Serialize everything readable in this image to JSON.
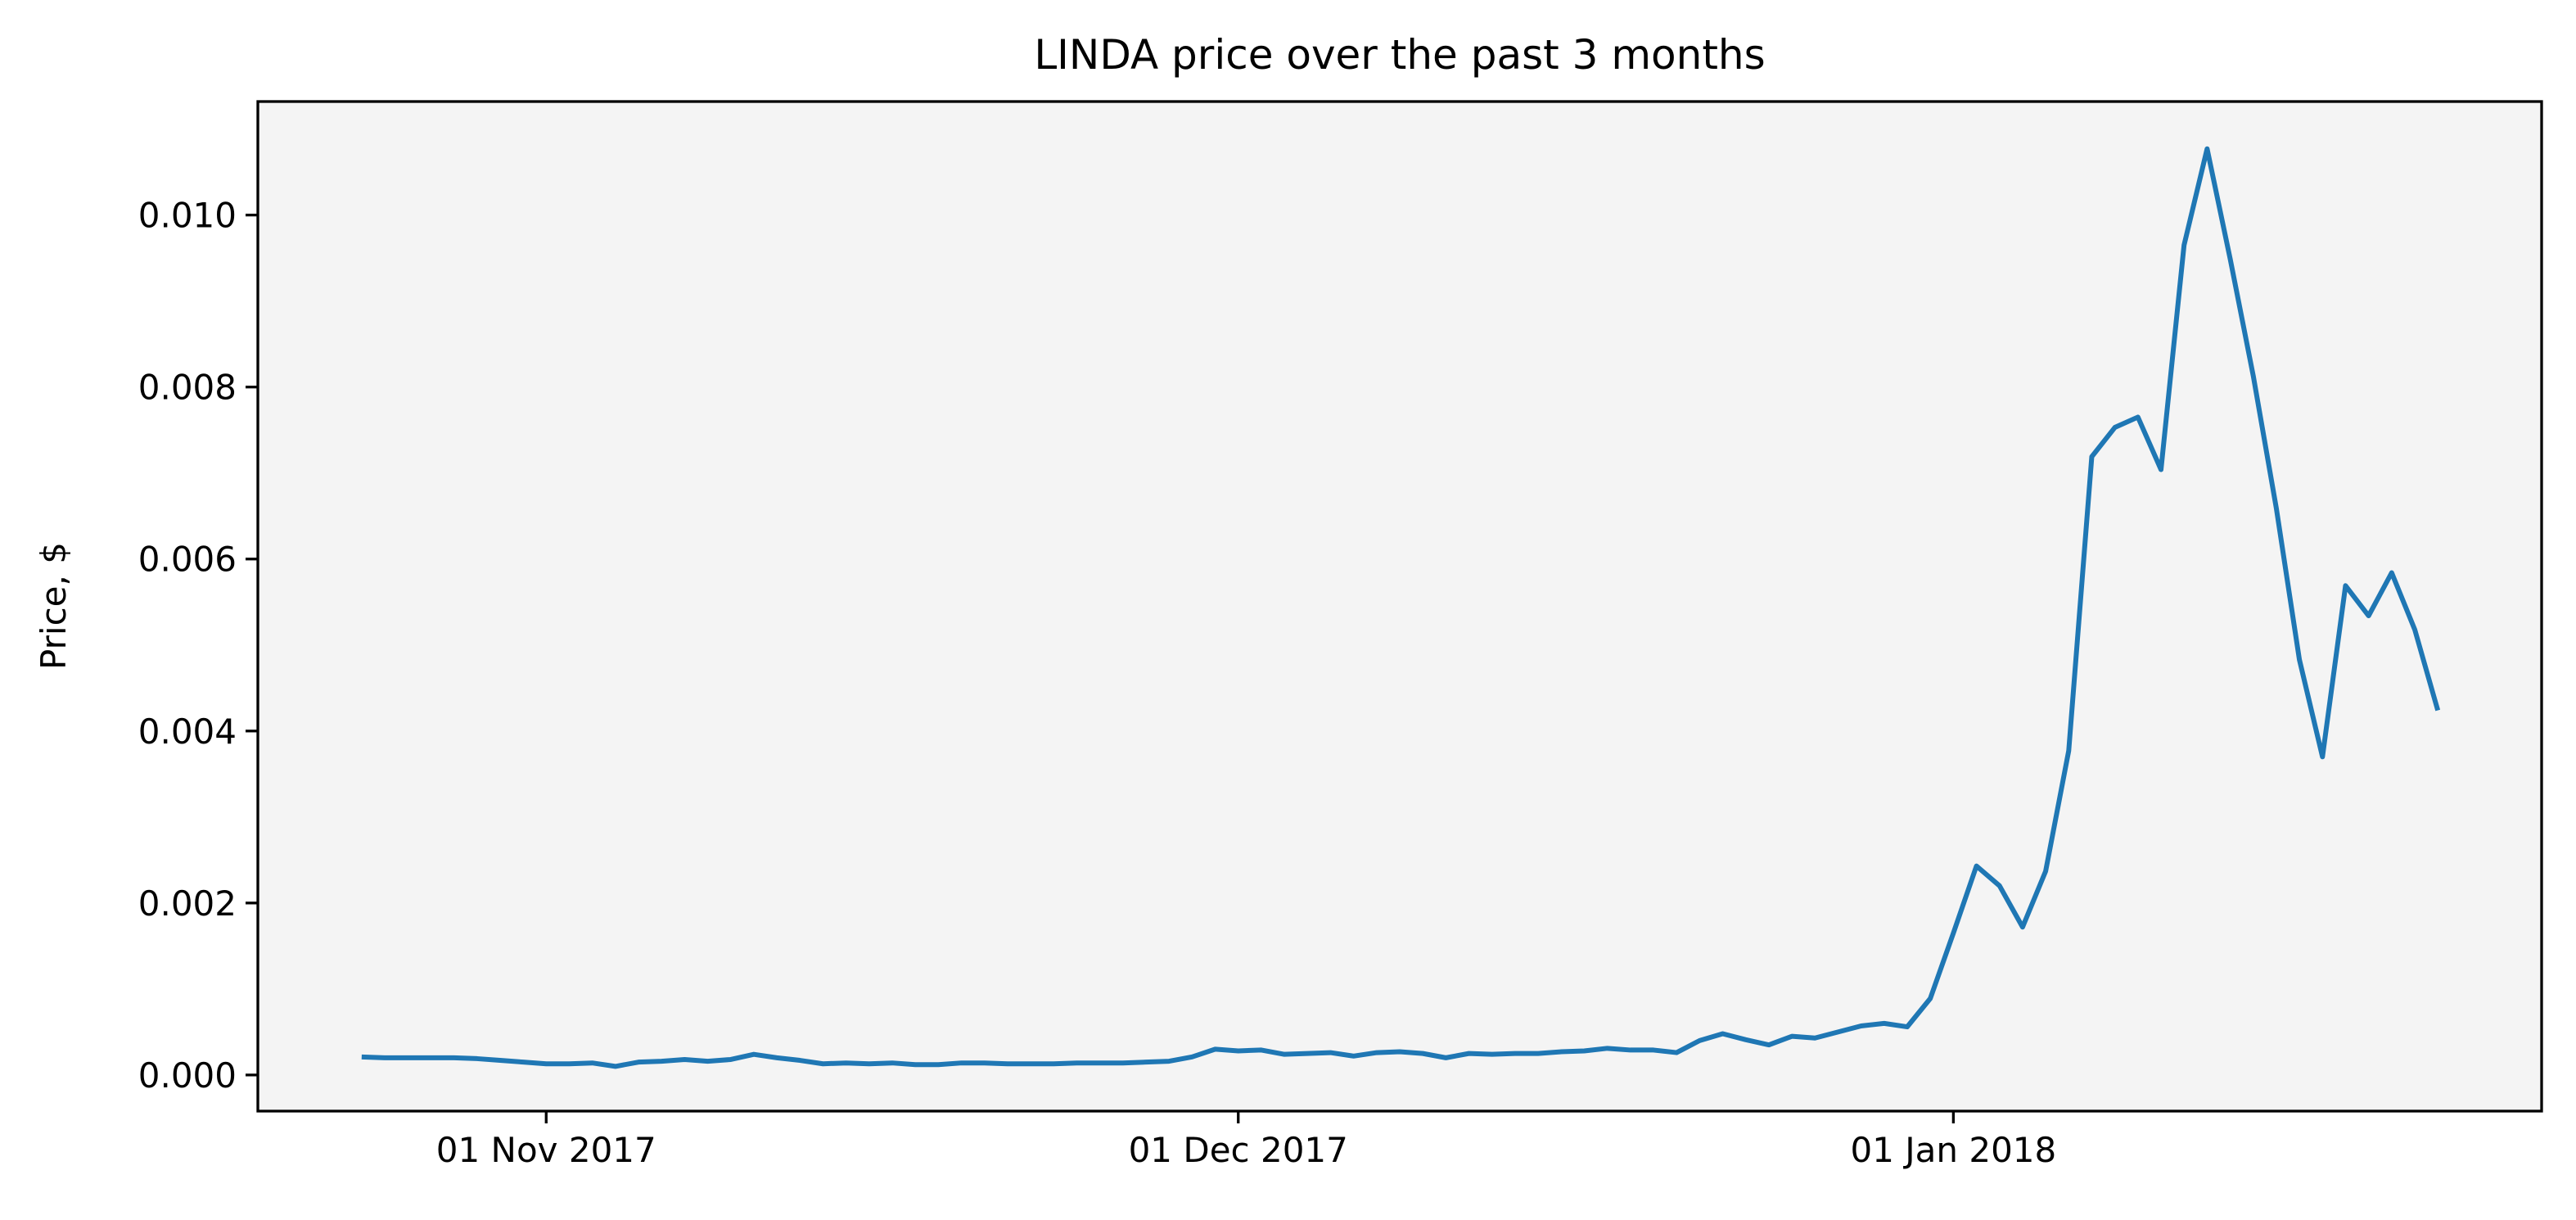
{
  "chart_data": {
    "type": "line",
    "title": "LINDA price over the past 3 months",
    "ylabel": "Price, $",
    "x": [
      "2017-10-24",
      "2017-10-25",
      "2017-10-26",
      "2017-10-27",
      "2017-10-28",
      "2017-10-29",
      "2017-10-30",
      "2017-10-31",
      "2017-11-01",
      "2017-11-02",
      "2017-11-03",
      "2017-11-04",
      "2017-11-05",
      "2017-11-06",
      "2017-11-07",
      "2017-11-08",
      "2017-11-09",
      "2017-11-10",
      "2017-11-11",
      "2017-11-12",
      "2017-11-13",
      "2017-11-14",
      "2017-11-15",
      "2017-11-16",
      "2017-11-17",
      "2017-11-18",
      "2017-11-19",
      "2017-11-20",
      "2017-11-21",
      "2017-11-22",
      "2017-11-23",
      "2017-11-24",
      "2017-11-25",
      "2017-11-26",
      "2017-11-27",
      "2017-11-28",
      "2017-11-29",
      "2017-11-30",
      "2017-12-01",
      "2017-12-02",
      "2017-12-03",
      "2017-12-04",
      "2017-12-05",
      "2017-12-06",
      "2017-12-07",
      "2017-12-08",
      "2017-12-09",
      "2017-12-10",
      "2017-12-11",
      "2017-12-12",
      "2017-12-13",
      "2017-12-14",
      "2017-12-15",
      "2017-12-16",
      "2017-12-17",
      "2017-12-18",
      "2017-12-19",
      "2017-12-20",
      "2017-12-21",
      "2017-12-22",
      "2017-12-23",
      "2017-12-24",
      "2017-12-25",
      "2017-12-26",
      "2017-12-27",
      "2017-12-28",
      "2017-12-29",
      "2017-12-30",
      "2017-12-31",
      "2018-01-01",
      "2018-01-02",
      "2018-01-03",
      "2018-01-04",
      "2018-01-05",
      "2018-01-06",
      "2018-01-07",
      "2018-01-08",
      "2018-01-09",
      "2018-01-10",
      "2018-01-11",
      "2018-01-12",
      "2018-01-13",
      "2018-01-14",
      "2018-01-15",
      "2018-01-16",
      "2018-01-17",
      "2018-01-18",
      "2018-01-19",
      "2018-01-20",
      "2018-01-21",
      "2018-01-22"
    ],
    "values": [
      0.00021,
      0.0002,
      0.0002,
      0.0002,
      0.0002,
      0.00019,
      0.00017,
      0.00015,
      0.00013,
      0.00013,
      0.00014,
      0.0001,
      0.00015,
      0.00016,
      0.00018,
      0.00016,
      0.00018,
      0.00024,
      0.0002,
      0.00017,
      0.00013,
      0.00014,
      0.00013,
      0.00014,
      0.00012,
      0.00012,
      0.00014,
      0.00014,
      0.00013,
      0.00013,
      0.00013,
      0.00014,
      0.00014,
      0.00014,
      0.00015,
      0.00016,
      0.00021,
      0.0003,
      0.00028,
      0.00029,
      0.00024,
      0.00025,
      0.00026,
      0.00022,
      0.00026,
      0.00027,
      0.00025,
      0.0002,
      0.00025,
      0.00024,
      0.00025,
      0.00025,
      0.00027,
      0.00028,
      0.00031,
      0.00029,
      0.00029,
      0.00026,
      0.0004,
      0.00048,
      0.00041,
      0.00035,
      0.00045,
      0.00043,
      0.0005,
      0.00057,
      0.0006,
      0.00056,
      0.00089,
      0.00165,
      0.00243,
      0.0022,
      0.00172,
      0.00237,
      0.00377,
      0.00719,
      0.00753,
      0.00765,
      0.00704,
      0.00965,
      0.01077,
      0.00949,
      0.00813,
      0.00659,
      0.00483,
      0.0037,
      0.00569,
      0.00534,
      0.00584,
      0.00518,
      0.00424
    ],
    "color": "#1f77b4",
    "xlim": [
      "2017-10-19T12:00",
      "2018-01-26T12:00"
    ],
    "xticks": [
      {
        "value": "2017-11-01",
        "label": "01 Nov 2017"
      },
      {
        "value": "2017-12-01",
        "label": "01 Dec 2017"
      },
      {
        "value": "2018-01-01",
        "label": "01 Jan 2018"
      }
    ],
    "ylim": [
      -0.00042,
      0.01132
    ],
    "yticks": [
      {
        "value": 0,
        "label": "0.000"
      },
      {
        "value": 0.002,
        "label": "0.002"
      },
      {
        "value": 0.004,
        "label": "0.004"
      },
      {
        "value": 0.006,
        "label": "0.006"
      },
      {
        "value": 0.008,
        "label": "0.008"
      },
      {
        "value": 0.01,
        "label": "0.010"
      }
    ],
    "grid": false
  }
}
